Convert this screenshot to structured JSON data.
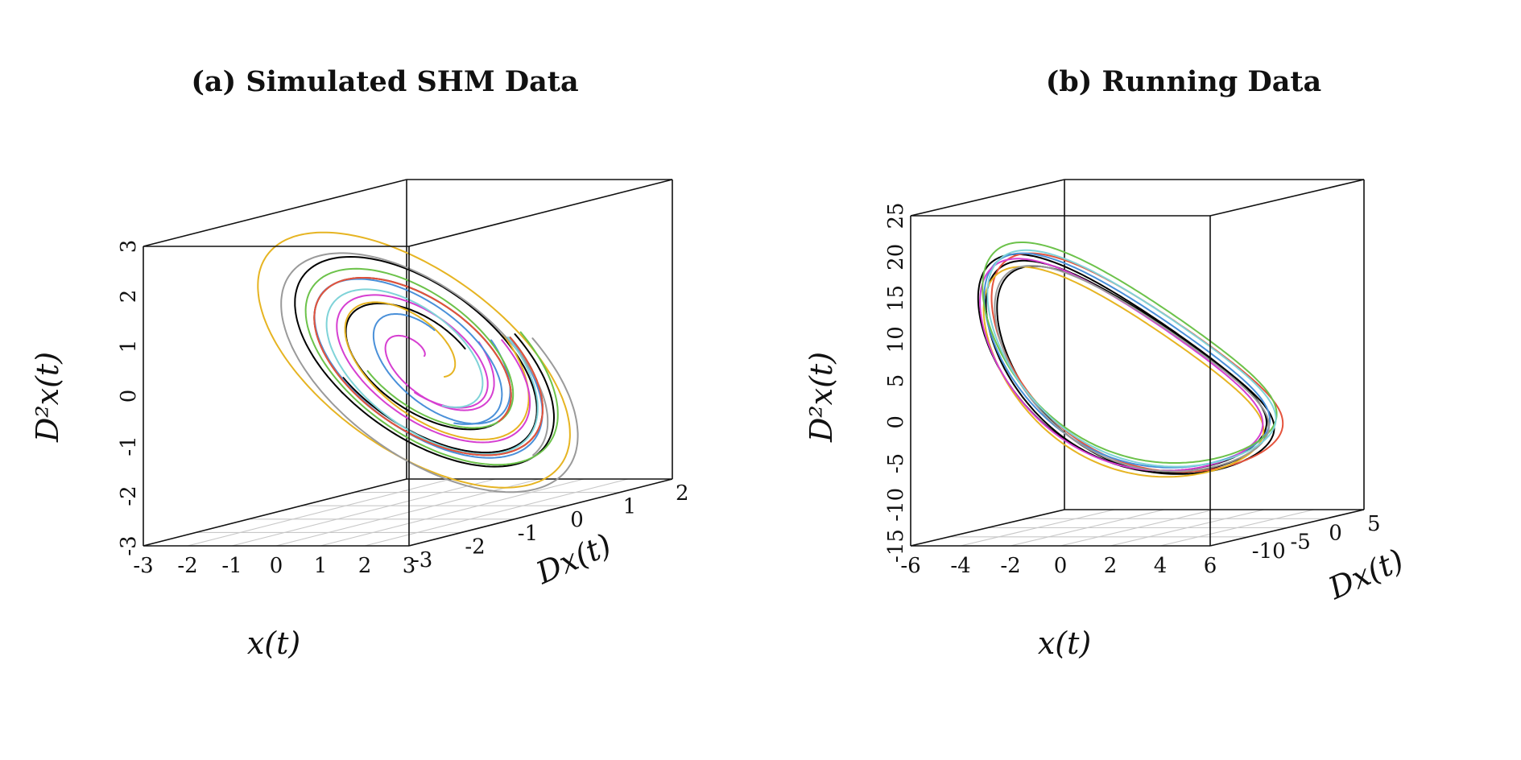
{
  "chart_data": [
    {
      "type": "line",
      "title": "(a) Simulated SHM Data",
      "xlabel": "x(t)",
      "ylabel": "Dx(t)",
      "zlabel": "D²x(t)",
      "xlim": [
        -3,
        3
      ],
      "ylim": [
        -3,
        2
      ],
      "zlim": [
        -3,
        3
      ],
      "xticks": [
        "-3",
        "-2",
        "-1",
        "0",
        "1",
        "2",
        "3"
      ],
      "yticks": [
        "-3",
        "-2",
        "-1",
        "0",
        "1",
        "2"
      ],
      "zticks": [
        "-3",
        "-2",
        "-1",
        "0",
        "1",
        "2",
        "3"
      ],
      "grid": "floor",
      "legend": "none",
      "series": [
        {
          "color": "#000000",
          "center": [
            0.05,
            -0.3,
            0.0
          ],
          "amp_x": 2.0,
          "amp_y": 1.7,
          "amp_z": 2.0,
          "turns": 2.0,
          "decay": 0.04
        },
        {
          "color": "#000000",
          "center": [
            0.1,
            -0.35,
            0.05
          ],
          "amp_x": 2.2,
          "amp_y": 1.8,
          "amp_z": 2.2,
          "turns": 1.5,
          "decay": 0.02
        },
        {
          "color": "#e6b422",
          "center": [
            -0.1,
            -0.3,
            0.0
          ],
          "amp_x": 2.6,
          "amp_y": 2.0,
          "amp_z": 2.5,
          "turns": 1.0,
          "decay": 0.0
        },
        {
          "color": "#e6b422",
          "center": [
            0.0,
            -0.3,
            0.1
          ],
          "amp_x": 1.9,
          "amp_y": 1.6,
          "amp_z": 2.0,
          "turns": 1.2,
          "decay": 0.1
        },
        {
          "color": "#d63fd1",
          "center": [
            0.1,
            -0.3,
            0.0
          ],
          "amp_x": 1.8,
          "amp_y": 1.5,
          "amp_z": 1.8,
          "turns": 1.4,
          "decay": 0.06
        },
        {
          "color": "#d63fd1",
          "center": [
            0.0,
            -0.25,
            0.05
          ],
          "amp_x": 1.3,
          "amp_y": 1.1,
          "amp_z": 1.4,
          "turns": 1.0,
          "decay": 0.15
        },
        {
          "color": "#4a90d9",
          "center": [
            0.0,
            -0.3,
            0.0
          ],
          "amp_x": 2.1,
          "amp_y": 1.7,
          "amp_z": 2.1,
          "turns": 1.3,
          "decay": 0.05
        },
        {
          "color": "#4a90d9",
          "center": [
            0.1,
            -0.2,
            0.05
          ],
          "amp_x": 1.4,
          "amp_y": 1.2,
          "amp_z": 1.6,
          "turns": 0.9,
          "decay": 0.1
        },
        {
          "color": "#6cc24a",
          "center": [
            0.05,
            -0.3,
            0.05
          ],
          "amp_x": 2.3,
          "amp_y": 1.9,
          "amp_z": 2.3,
          "turns": 1.5,
          "decay": 0.05
        },
        {
          "color": "#9a9a9a",
          "center": [
            0.2,
            -0.4,
            -0.1
          ],
          "amp_x": 2.6,
          "amp_y": 2.1,
          "amp_z": 2.6,
          "turns": 1.2,
          "decay": 0.03
        },
        {
          "color": "#7fd3d8",
          "center": [
            0.0,
            -0.3,
            0.0
          ],
          "amp_x": 2.0,
          "amp_y": 1.7,
          "amp_z": 2.1,
          "turns": 1.3,
          "decay": 0.07
        },
        {
          "color": "#e5533c",
          "center": [
            0.05,
            -0.3,
            0.0
          ],
          "amp_x": 2.0,
          "amp_y": 1.7,
          "amp_z": 2.0,
          "turns": 1.2,
          "decay": 0.04
        }
      ]
    },
    {
      "type": "line",
      "title": "(b) Running Data",
      "xlabel": "x(t)",
      "ylabel": "Dx(t)",
      "zlabel": "D²x(t)",
      "xlim": [
        -6,
        6
      ],
      "ylim": [
        -15,
        5
      ],
      "zlim": [
        -15,
        25
      ],
      "xticks": [
        "-6",
        "-4",
        "-2",
        "0",
        "2",
        "4",
        "6"
      ],
      "yticks": [
        "-10",
        "-5",
        "0",
        "5"
      ],
      "zticks": [
        "-15",
        "-10",
        "-5",
        "0",
        "5",
        "10",
        "15",
        "20",
        "25"
      ],
      "grid": "floor",
      "legend": "none",
      "series": [
        {
          "color": "#000000",
          "offset": [
            0,
            0,
            0
          ],
          "scale": 1.0
        },
        {
          "color": "#000000",
          "offset": [
            0.2,
            0.3,
            -0.4
          ],
          "scale": 0.98
        },
        {
          "color": "#000000",
          "offset": [
            -0.1,
            -0.2,
            0.5
          ],
          "scale": 1.02
        },
        {
          "color": "#e5533c",
          "offset": [
            0.3,
            0.5,
            0.3
          ],
          "scale": 1.03
        },
        {
          "color": "#e6b422",
          "offset": [
            -0.2,
            0.1,
            -0.6
          ],
          "scale": 0.99
        },
        {
          "color": "#4a90d9",
          "offset": [
            0.1,
            -0.3,
            0.8
          ],
          "scale": 1.01
        },
        {
          "color": "#d63fd1",
          "offset": [
            -0.3,
            0.2,
            0.2
          ],
          "scale": 1.0
        },
        {
          "color": "#6cc24a",
          "offset": [
            0.2,
            -0.1,
            1.6
          ],
          "scale": 1.04
        },
        {
          "color": "#9a9a9a",
          "offset": [
            0.0,
            0.4,
            -0.2
          ],
          "scale": 0.97
        },
        {
          "color": "#7fd3d8",
          "offset": [
            0.15,
            0.2,
            0.9
          ],
          "scale": 1.02
        }
      ]
    }
  ]
}
